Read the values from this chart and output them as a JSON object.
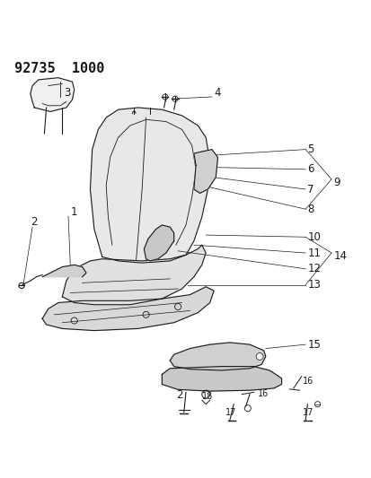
{
  "title": "92735  1000",
  "background_color": "#ffffff",
  "line_color": "#1a1a1a",
  "label_color": "#1a1a1a",
  "title_fontsize": 11,
  "label_fontsize": 9
}
